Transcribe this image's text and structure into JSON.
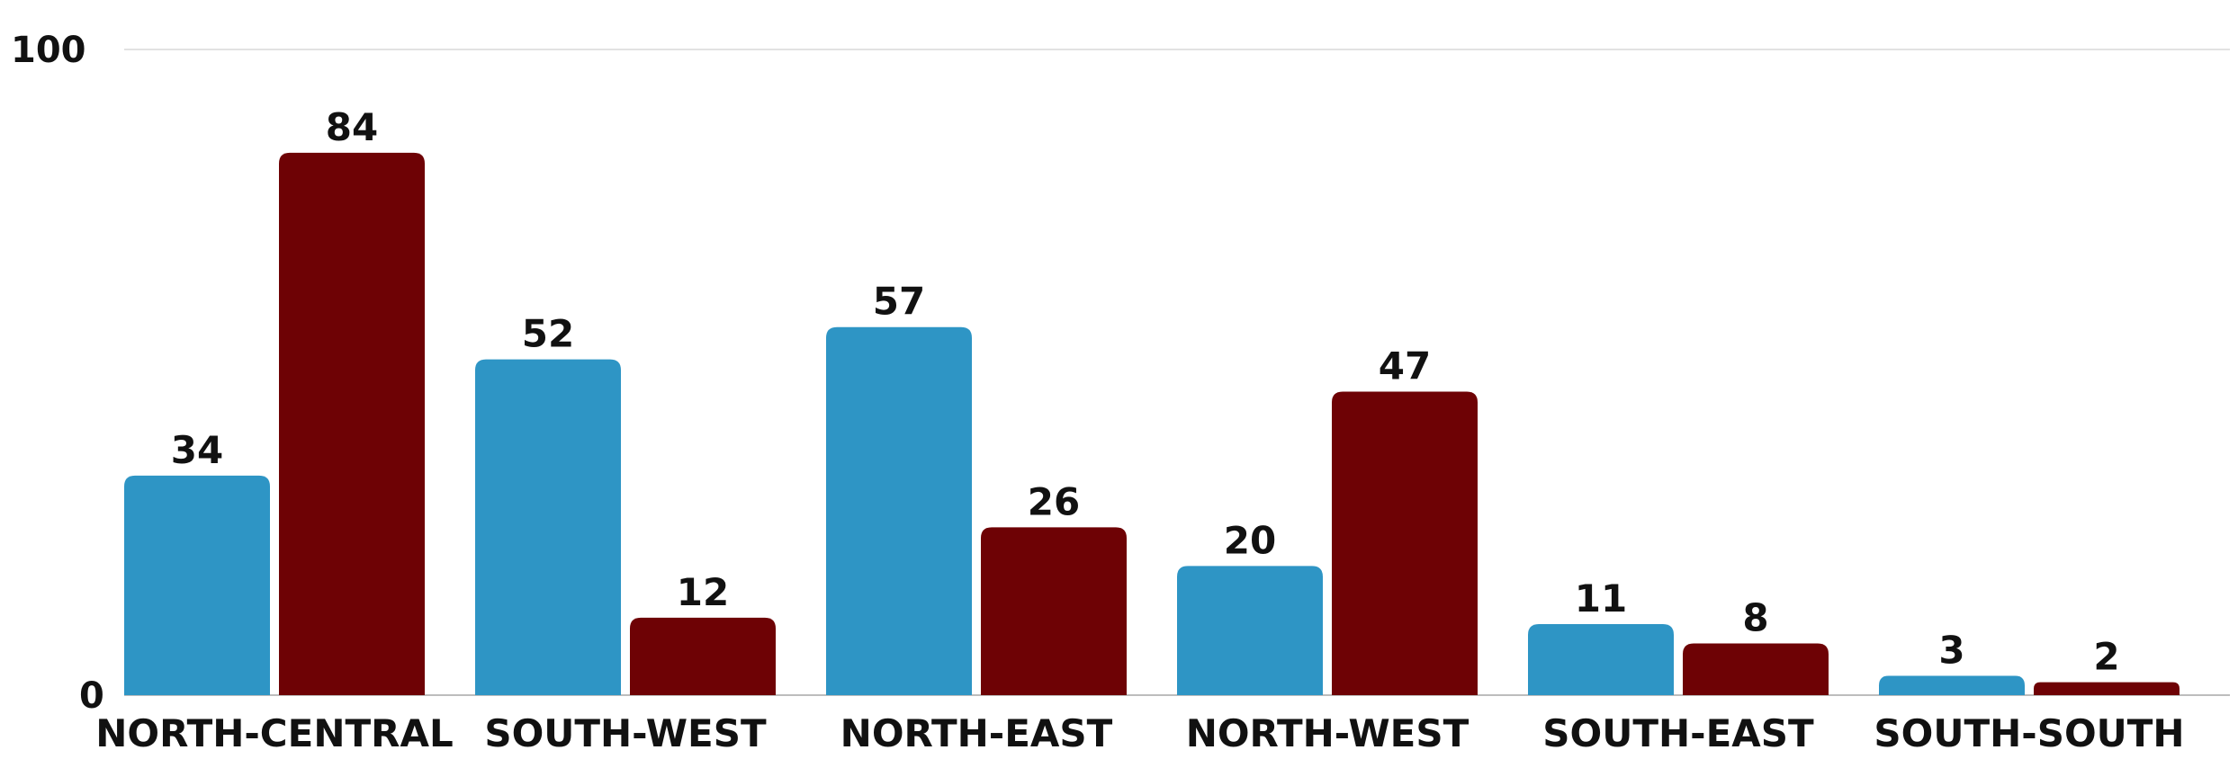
{
  "chart_data": {
    "type": "bar",
    "categories": [
      "NORTH-CENTRAL",
      "SOUTH-WEST",
      "NORTH-EAST",
      "NORTH-WEST",
      "SOUTH-EAST",
      "SOUTH-SOUTH"
    ],
    "series": [
      {
        "values": [
          34,
          52,
          57,
          20,
          11,
          3
        ],
        "color": "#2e95c5"
      },
      {
        "values": [
          84,
          12,
          26,
          47,
          8,
          2
        ],
        "color": "#6e0205"
      }
    ],
    "ylim": [
      0,
      100
    ],
    "yticks": [
      0,
      100
    ],
    "grid": true,
    "legend": "none",
    "title": "",
    "xlabel": "",
    "ylabel": ""
  }
}
